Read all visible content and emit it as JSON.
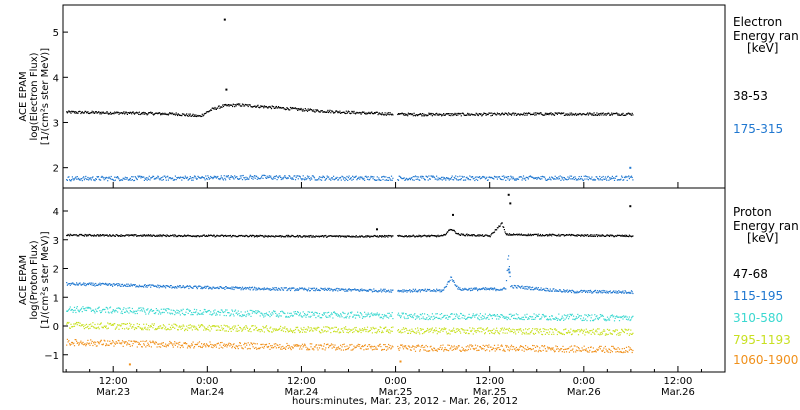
{
  "chart_data": {
    "type": "scatter",
    "xlabel": "hours:minutes, Mar. 23, 2012 - Mar. 26, 2012",
    "x_ticks": [
      {
        "hours": 12,
        "time": "12:00",
        "date": "Mar.23"
      },
      {
        "hours": 24,
        "time": "0:00",
        "date": "Mar.24"
      },
      {
        "hours": 36,
        "time": "12:00",
        "date": "Mar.24"
      },
      {
        "hours": 48,
        "time": "0:00",
        "date": "Mar.25"
      },
      {
        "hours": 60,
        "time": "12:00",
        "date": "Mar.25"
      },
      {
        "hours": 72,
        "time": "0:00",
        "date": "Mar.26"
      },
      {
        "hours": 84,
        "time": "12:00",
        "date": "Mar.26"
      }
    ],
    "xlim_hours": [
      5.6,
      90
    ],
    "panels": [
      {
        "id": "electron",
        "ylabel_lines": [
          "ACE EPAM",
          "log(Electron Flux)",
          "[1/(cm²s ster MeV)]"
        ],
        "ylim": [
          1.55,
          5.6
        ],
        "y_ticks": [
          2,
          3,
          4,
          5
        ],
        "legend_title": [
          "Electron",
          "Energy ran",
          "[keV]"
        ],
        "series": [
          {
            "name": "38-53",
            "color": "#000000",
            "level": 3.2,
            "points": [
              [
                6,
                3.24
              ],
              [
                14,
                3.22
              ],
              [
                20,
                3.2
              ],
              [
                23,
                3.15
              ],
              [
                24.5,
                3.3
              ],
              [
                26,
                3.38
              ],
              [
                28,
                3.4
              ],
              [
                32,
                3.35
              ],
              [
                38,
                3.27
              ],
              [
                44,
                3.22
              ],
              [
                47.5,
                3.2
              ],
              [
                50,
                3.19
              ],
              [
                58,
                3.19
              ],
              [
                66,
                3.2
              ],
              [
                74,
                3.2
              ],
              [
                78,
                3.2
              ]
            ],
            "spikes": [
              [
                26.1,
                5.3
              ],
              [
                26.3,
                3.75
              ]
            ]
          },
          {
            "name": "175-315",
            "color": "#1f77d0",
            "level": 1.78,
            "points": [
              [
                6,
                1.77
              ],
              [
                20,
                1.78
              ],
              [
                30,
                1.8
              ],
              [
                40,
                1.78
              ],
              [
                47.5,
                1.78
              ],
              [
                50,
                1.78
              ],
              [
                62,
                1.78
              ],
              [
                70,
                1.78
              ],
              [
                78,
                1.78
              ]
            ],
            "spikes": [
              [
                77.8,
                2.02
              ]
            ]
          }
        ]
      },
      {
        "id": "proton",
        "ylabel_lines": [
          "ACE EPAM",
          "log(Proton Flux)",
          "[1/(cm²s ster MeV)]"
        ],
        "ylim": [
          -1.6,
          4.8
        ],
        "y_ticks": [
          -1,
          0,
          1,
          2,
          3,
          4
        ],
        "legend_title": [
          "Proton",
          "Energy ran",
          "[keV]"
        ],
        "series": [
          {
            "name": "47-68",
            "color": "#000000",
            "level": 3.15,
            "points": [
              [
                6,
                3.18
              ],
              [
                20,
                3.16
              ],
              [
                36,
                3.14
              ],
              [
                47.5,
                3.14
              ],
              [
                50,
                3.15
              ],
              [
                54,
                3.15
              ],
              [
                55,
                3.4
              ],
              [
                56,
                3.2
              ],
              [
                60,
                3.15
              ],
              [
                61.5,
                3.6
              ],
              [
                62,
                3.2
              ],
              [
                78,
                3.15
              ]
            ],
            "spikes": [
              [
                45.5,
                3.4
              ],
              [
                55.2,
                3.9
              ],
              [
                62.3,
                4.6
              ],
              [
                62.5,
                4.3
              ],
              [
                77.8,
                4.2
              ]
            ]
          },
          {
            "name": "115-195",
            "color": "#1f77d0",
            "level": 1.3,
            "points": [
              [
                6,
                1.48
              ],
              [
                12,
                1.45
              ],
              [
                20,
                1.38
              ],
              [
                30,
                1.32
              ],
              [
                40,
                1.28
              ],
              [
                47.5,
                1.25
              ],
              [
                50,
                1.25
              ],
              [
                54,
                1.25
              ],
              [
                55,
                1.7
              ],
              [
                56,
                1.3
              ],
              [
                62,
                1.3
              ],
              [
                62.3,
                2.6
              ],
              [
                62.6,
                1.4
              ],
              [
                70,
                1.22
              ],
              [
                78,
                1.2
              ]
            ],
            "spikes": [
              [
                62.3,
                2.0
              ],
              [
                62.4,
                1.9
              ]
            ]
          },
          {
            "name": "310-580",
            "color": "#3ad8d0",
            "level": 0.4,
            "points": [
              [
                6,
                0.6
              ],
              [
                15,
                0.55
              ],
              [
                25,
                0.48
              ],
              [
                35,
                0.42
              ],
              [
                47.5,
                0.38
              ],
              [
                50,
                0.35
              ],
              [
                62,
                0.35
              ],
              [
                70,
                0.32
              ],
              [
                78,
                0.3
              ]
            ],
            "spikes": []
          },
          {
            "name": "795-1193",
            "color": "#c8e020",
            "level": -0.1,
            "points": [
              [
                6,
                0.05
              ],
              [
                15,
                0.0
              ],
              [
                25,
                -0.05
              ],
              [
                35,
                -0.1
              ],
              [
                47.5,
                -0.12
              ],
              [
                50,
                -0.15
              ],
              [
                62,
                -0.15
              ],
              [
                70,
                -0.18
              ],
              [
                78,
                -0.2
              ]
            ],
            "spikes": []
          },
          {
            "name": "1060-1900",
            "color": "#f0901a",
            "level": -0.7,
            "points": [
              [
                6,
                -0.55
              ],
              [
                15,
                -0.6
              ],
              [
                25,
                -0.65
              ],
              [
                35,
                -0.7
              ],
              [
                47.5,
                -0.72
              ],
              [
                50,
                -0.75
              ],
              [
                62,
                -0.75
              ],
              [
                70,
                -0.78
              ],
              [
                78,
                -0.8
              ]
            ],
            "spikes": [
              [
                14,
                -1.3
              ],
              [
                48.5,
                -1.2
              ]
            ]
          }
        ]
      }
    ]
  }
}
